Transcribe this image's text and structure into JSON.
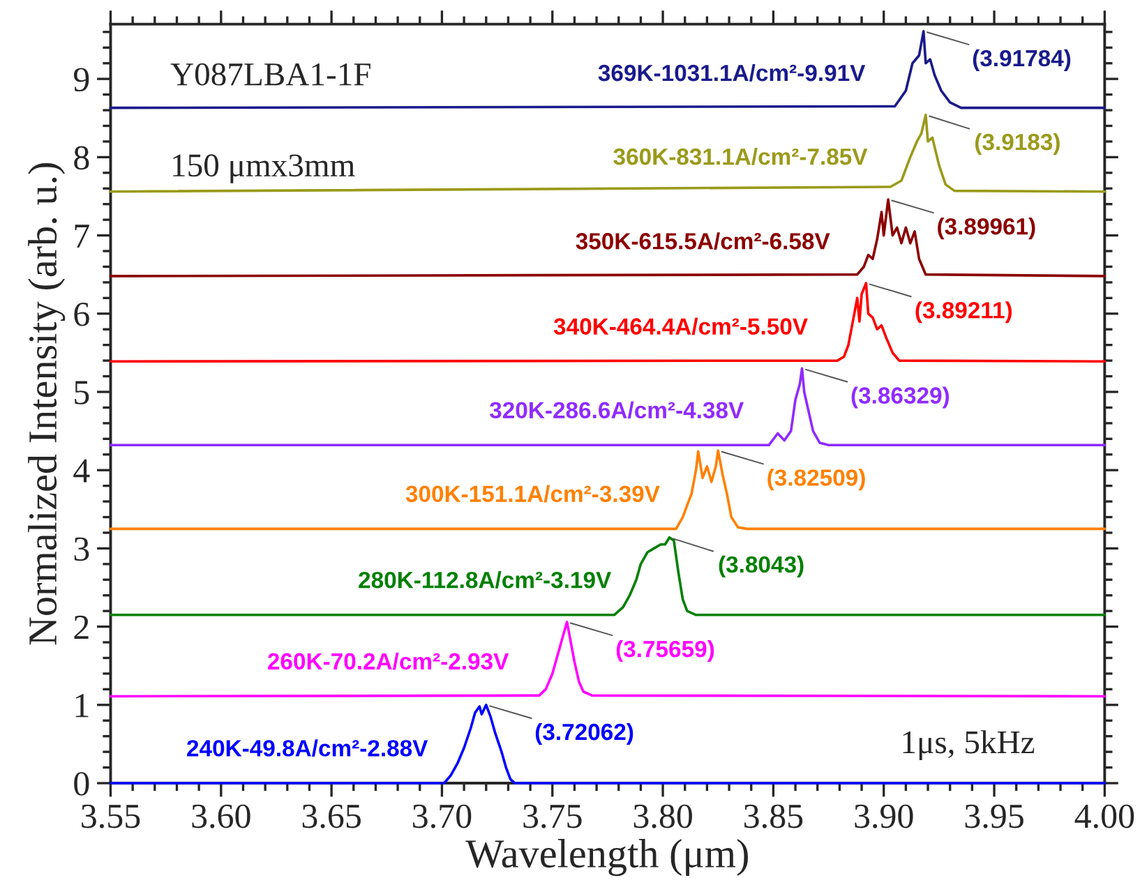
{
  "chart_data": {
    "type": "line",
    "xlabel": "Wavelength (μm)",
    "ylabel": "Normalized Intensity (arb. u.)",
    "xlim": [
      3.55,
      4.0
    ],
    "xticks": [
      {
        "value": 3.55,
        "label": "3.55"
      },
      {
        "value": 3.6,
        "label": "3.60"
      },
      {
        "value": 3.65,
        "label": "3.65"
      },
      {
        "value": 3.7,
        "label": "3.70"
      },
      {
        "value": 3.75,
        "label": "3.75"
      },
      {
        "value": 3.8,
        "label": "3.80"
      },
      {
        "value": 3.85,
        "label": "3.85"
      },
      {
        "value": 3.9,
        "label": "3.90"
      },
      {
        "value": 3.95,
        "label": "3.95"
      },
      {
        "value": 4.0,
        "label": "4.00"
      }
    ],
    "ylim": [
      0,
      9.7
    ],
    "yticks": [
      0,
      1,
      2,
      3,
      4,
      5,
      6,
      7,
      8,
      9
    ],
    "grid": false,
    "legend": false,
    "marker": "none",
    "line_style": "solid",
    "series": [
      {
        "name": "369K-1031.1A/cm²-9.91V",
        "color": "#1a1a8c",
        "x": [
          3.55,
          3.905,
          3.91,
          3.913,
          3.916,
          3.918,
          3.919,
          3.921,
          3.923,
          3.926,
          3.93,
          3.935,
          4.0
        ],
        "values": [
          8.63,
          8.65,
          8.85,
          9.2,
          9.3,
          9.61,
          9.2,
          9.25,
          9.05,
          8.85,
          8.7,
          8.63,
          8.63
        ]
      },
      {
        "name": "360K-831.1A/cm²-7.85V",
        "color": "#9a9a1a",
        "x": [
          3.55,
          3.903,
          3.908,
          3.912,
          3.915,
          3.917,
          3.919,
          3.92,
          3.922,
          3.925,
          3.928,
          3.932,
          4.0
        ],
        "values": [
          7.56,
          7.62,
          7.7,
          8.0,
          8.2,
          8.3,
          8.54,
          8.2,
          8.25,
          7.9,
          7.65,
          7.57,
          7.56
        ]
      },
      {
        "name": "350K-615.5A/cm²-6.58V",
        "color": "#8b0000",
        "x": [
          3.55,
          3.888,
          3.891,
          3.893,
          3.895,
          3.897,
          3.899,
          3.9,
          3.902,
          3.904,
          3.906,
          3.908,
          3.91,
          3.912,
          3.914,
          3.916,
          3.919,
          4.0
        ],
        "values": [
          6.48,
          6.5,
          6.6,
          6.75,
          6.7,
          6.95,
          7.3,
          7.0,
          7.46,
          7.0,
          7.1,
          6.9,
          7.1,
          6.9,
          7.05,
          6.7,
          6.5,
          6.48
        ]
      },
      {
        "name": "340K-464.4A/cm²-5.50V",
        "color": "#ff0000",
        "x": [
          3.55,
          3.879,
          3.882,
          3.884,
          3.886,
          3.888,
          3.889,
          3.89,
          3.892,
          3.893,
          3.895,
          3.897,
          3.899,
          3.901,
          3.904,
          3.907,
          4.0
        ],
        "values": [
          5.39,
          5.4,
          5.45,
          5.6,
          5.9,
          6.2,
          5.9,
          6.25,
          6.39,
          6.0,
          5.95,
          5.8,
          5.85,
          5.7,
          5.5,
          5.4,
          5.39
        ]
      },
      {
        "name": "320K-286.6A/cm²-4.38V",
        "color": "#8f2bff",
        "x": [
          3.55,
          3.848,
          3.852,
          3.855,
          3.858,
          3.86,
          3.862,
          3.863,
          3.864,
          3.866,
          3.868,
          3.871,
          3.875,
          4.0
        ],
        "values": [
          4.32,
          4.32,
          4.47,
          4.38,
          4.5,
          4.9,
          5.1,
          5.3,
          5.0,
          4.75,
          4.5,
          4.35,
          4.32,
          4.32
        ]
      },
      {
        "name": "300K-151.1A/cm²-3.39V",
        "color": "#ff8000",
        "x": [
          3.55,
          3.806,
          3.809,
          3.811,
          3.813,
          3.815,
          3.816,
          3.818,
          3.82,
          3.822,
          3.824,
          3.825,
          3.827,
          3.829,
          3.831,
          3.834,
          3.838,
          4.0
        ],
        "values": [
          3.25,
          3.25,
          3.4,
          3.55,
          3.7,
          4.0,
          4.24,
          3.9,
          4.05,
          3.85,
          4.05,
          4.25,
          3.95,
          3.7,
          3.4,
          3.27,
          3.25,
          3.25
        ]
      },
      {
        "name": "280K-112.8A/cm²-3.19V",
        "color": "#008000",
        "x": [
          3.55,
          3.778,
          3.782,
          3.785,
          3.788,
          3.79,
          3.793,
          3.796,
          3.799,
          3.801,
          3.803,
          3.805,
          3.807,
          3.809,
          3.811,
          3.815,
          4.0
        ],
        "values": [
          2.15,
          2.15,
          2.25,
          2.4,
          2.6,
          2.8,
          2.95,
          3.0,
          3.05,
          3.05,
          3.14,
          3.1,
          2.7,
          2.35,
          2.2,
          2.15,
          2.15
        ]
      },
      {
        "name": "260K-70.2A/cm²-2.93V",
        "color": "#ff00ff",
        "x": [
          3.55,
          3.744,
          3.747,
          3.75,
          3.753,
          3.755,
          3.7566,
          3.758,
          3.76,
          3.762,
          3.764,
          3.768,
          4.0
        ],
        "values": [
          1.11,
          1.12,
          1.2,
          1.4,
          1.7,
          1.9,
          2.06,
          1.85,
          1.55,
          1.3,
          1.17,
          1.12,
          1.11
        ]
      },
      {
        "name": "240K-49.8A/cm²-2.88V",
        "color": "#0000ff",
        "x": [
          3.55,
          3.701,
          3.704,
          3.707,
          3.71,
          3.713,
          3.715,
          3.717,
          3.718,
          3.72,
          3.722,
          3.724,
          3.727,
          3.729,
          3.731,
          3.733,
          4.0
        ],
        "values": [
          0,
          0,
          0.1,
          0.25,
          0.45,
          0.7,
          0.9,
          0.98,
          0.88,
          1.0,
          0.85,
          0.65,
          0.4,
          0.2,
          0.05,
          0,
          0
        ]
      }
    ],
    "annotations": [
      "Y087LBA1-1F",
      "150 μmx3mm",
      "1μs, 5kHz",
      {
        "text": "(3.91784)",
        "x": 3.918,
        "y": 9.61
      },
      {
        "text": "(3.9183)",
        "x": 3.919,
        "y": 8.54
      },
      {
        "text": "(3.89961)",
        "x": 3.902,
        "y": 7.46
      },
      {
        "text": "(3.89211)",
        "x": 3.892,
        "y": 6.39
      },
      {
        "text": "(3.86329)",
        "x": 3.863,
        "y": 5.3
      },
      {
        "text": "(3.82509)",
        "x": 3.825,
        "y": 4.25
      },
      {
        "text": "(3.8043)",
        "x": 3.803,
        "y": 3.14
      },
      {
        "text": "(3.75659)",
        "x": 3.7566,
        "y": 2.06
      },
      {
        "text": "(3.72062)",
        "x": 3.72,
        "y": 1.0
      }
    ]
  }
}
